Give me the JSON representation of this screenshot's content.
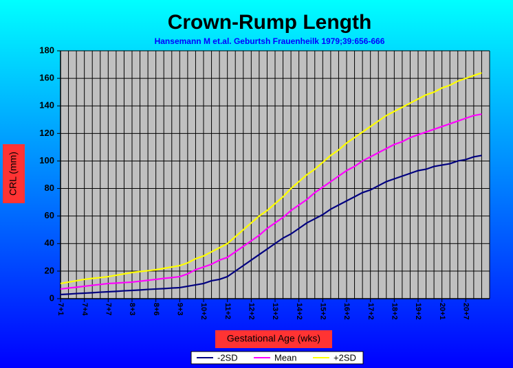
{
  "chart_data": {
    "type": "line",
    "title": "Crown-Rump Length",
    "subtitle": "Hansemann M et.al. Geburtsh Frauenheilk 1979;39:656-666",
    "x_label": "Gestational Age (wks)",
    "y_label": "CRL (mm)",
    "categories": [
      "7+1",
      null,
      null,
      "7+4",
      null,
      null,
      "7+7",
      null,
      null,
      "8+3",
      null,
      null,
      "8+6",
      null,
      null,
      "9+3",
      null,
      null,
      "10+2",
      null,
      null,
      "11+2",
      null,
      null,
      "12+2",
      null,
      null,
      "13+2",
      null,
      null,
      "14+2",
      null,
      null,
      "15+2",
      null,
      null,
      "16+2",
      null,
      null,
      "17+2",
      null,
      null,
      "18+2",
      null,
      null,
      "19+2",
      null,
      null,
      "20+1",
      null,
      null,
      "20+7",
      null,
      null
    ],
    "series": [
      {
        "name": "-2SD",
        "color": "#000080",
        "values": [
          3,
          3.3,
          3.7,
          4,
          4.3,
          4.7,
          5,
          5.3,
          5.7,
          6,
          6.3,
          6.7,
          7,
          7.3,
          7.7,
          8,
          9,
          10,
          11,
          13,
          14,
          16,
          20,
          24,
          28,
          32,
          36,
          40,
          44,
          47,
          51,
          55,
          58,
          61,
          65,
          68,
          71,
          74,
          77,
          79,
          82,
          85,
          87,
          89,
          91,
          93,
          94,
          96,
          97,
          98,
          100,
          101,
          103,
          104
        ]
      },
      {
        "name": "Mean",
        "color": "#ff00ff",
        "values": [
          7,
          7.7,
          8.3,
          9,
          9.7,
          10.3,
          11,
          11.3,
          11.7,
          12,
          12.7,
          13.3,
          14,
          14.7,
          15.3,
          16,
          18,
          21,
          23,
          25,
          28,
          30,
          34,
          38,
          42,
          46,
          51,
          55,
          59,
          64,
          68,
          72,
          77,
          81,
          85,
          89,
          93,
          96,
          100,
          103,
          106,
          109,
          112,
          114,
          117,
          119,
          121,
          123,
          125,
          127,
          129,
          131,
          133,
          134
        ]
      },
      {
        "name": "+2SD",
        "color": "#ffff00",
        "values": [
          11,
          12,
          13,
          14,
          14.7,
          15.3,
          16,
          17,
          18,
          19,
          19.7,
          20.3,
          21,
          22,
          23,
          24,
          26,
          29,
          31,
          34,
          37,
          40,
          45,
          50,
          55,
          60,
          64,
          69,
          74,
          80,
          85,
          90,
          94,
          99,
          104,
          108,
          113,
          117,
          121,
          125,
          129,
          133,
          136,
          139,
          142,
          145,
          148,
          150,
          153,
          155,
          158,
          160,
          162,
          164
        ]
      }
    ],
    "ylim": [
      0,
      180
    ],
    "yticks": [
      0,
      20,
      40,
      60,
      80,
      100,
      120,
      140,
      160,
      180
    ],
    "grid": true,
    "plot_background": "#c0c0c0",
    "legend": "bottom"
  }
}
